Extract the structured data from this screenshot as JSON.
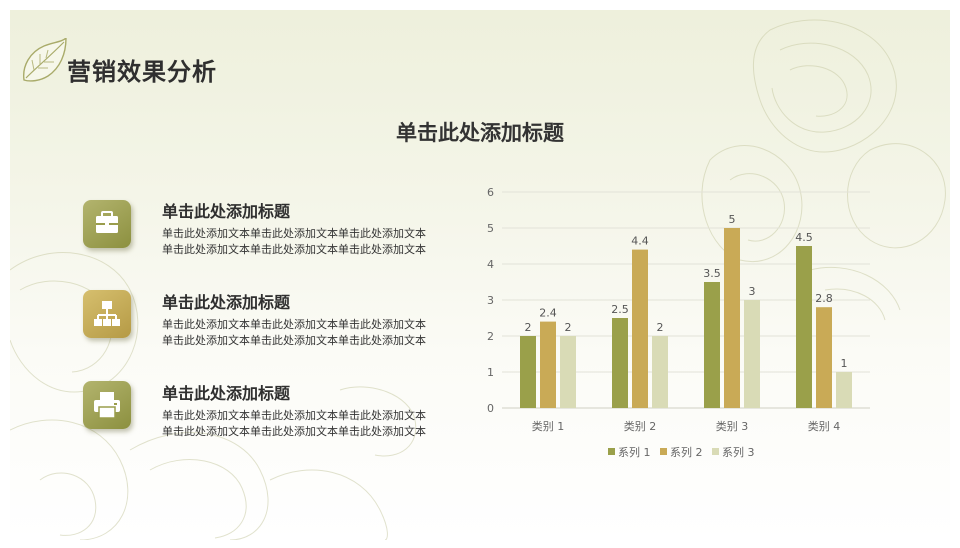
{
  "slide": {
    "title": "营销效果分析",
    "subtitle": "单击此处添加标题"
  },
  "items": [
    {
      "icon": "briefcase-icon",
      "title": "单击此处添加标题",
      "text": "单击此处添加文本单击此处添加文本单击此处添加文本单击此处添加文本单击此处添加文本单击此处添加文本"
    },
    {
      "icon": "org-chart-icon",
      "title": "单击此处添加标题",
      "text": "单击此处添加文本单击此处添加文本单击此处添加文本单击此处添加文本单击此处添加文本单击此处添加文本"
    },
    {
      "icon": "printer-icon",
      "title": "单击此处添加标题",
      "text": "单击此处添加文本单击此处添加文本单击此处添加文本单击此处添加文本单击此处添加文本单击此处添加文本"
    }
  ],
  "colors": {
    "accent": "#8c903f",
    "series1": "#9aa04a",
    "series2": "#c9aa56",
    "series3": "#d9dbb6"
  },
  "chart_data": {
    "type": "bar",
    "categories": [
      "类别 1",
      "类别 2",
      "类别 3",
      "类别 4"
    ],
    "series": [
      {
        "name": "系列 1",
        "values": [
          2,
          2.5,
          3.5,
          4.5
        ]
      },
      {
        "name": "系列 2",
        "values": [
          2.4,
          4.4,
          5,
          2.8
        ]
      },
      {
        "name": "系列 3",
        "values": [
          2,
          2,
          3,
          1
        ]
      }
    ],
    "yticks": [
      "0",
      "1",
      "2",
      "3",
      "4",
      "5",
      "6"
    ],
    "ylim": [
      0,
      6
    ],
    "grid": true,
    "legend": "bottom"
  }
}
